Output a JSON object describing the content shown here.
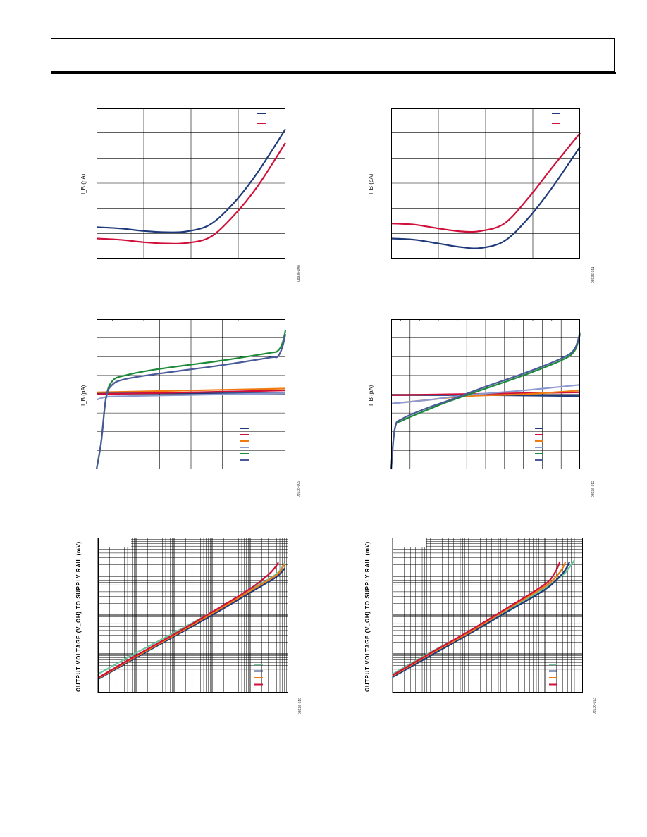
{
  "header": {
    "title": ""
  },
  "colors": {
    "navy": "#1f3a7a",
    "red": "#d0103a",
    "orange": "#f07a10",
    "lavender": "#8c9ad0",
    "green": "#1d8a3a",
    "slate": "#4a5a98",
    "mint": "#6cc49a"
  },
  "figures": [
    {
      "id": "top-left",
      "ylabel": "I_B (pA)",
      "code": "08936-008",
      "chart_data": {
        "type": "line",
        "xlim": [
          0,
          4
        ],
        "ylim": [
          0,
          6
        ],
        "grid": true,
        "legend_position": "top-right",
        "series": [
          {
            "color": "navy",
            "points": [
              [
                0,
                1.25
              ],
              [
                0.5,
                1.2
              ],
              [
                1,
                1.1
              ],
              [
                1.5,
                1.05
              ],
              [
                1.9,
                1.08
              ],
              [
                2.4,
                1.35
              ],
              [
                2.9,
                2.2
              ],
              [
                3.4,
                3.4
              ],
              [
                4,
                5.15
              ]
            ]
          },
          {
            "color": "red",
            "points": [
              [
                0,
                0.8
              ],
              [
                0.5,
                0.75
              ],
              [
                1,
                0.65
              ],
              [
                1.5,
                0.6
              ],
              [
                1.9,
                0.62
              ],
              [
                2.4,
                0.85
              ],
              [
                2.9,
                1.7
              ],
              [
                3.4,
                2.85
              ],
              [
                4,
                4.6
              ]
            ]
          }
        ]
      }
    },
    {
      "id": "top-right",
      "ylabel": "I_B (pA)",
      "code": "08936-011",
      "chart_data": {
        "type": "line",
        "xlim": [
          0,
          4
        ],
        "ylim": [
          0,
          6
        ],
        "grid": true,
        "legend_position": "top-right",
        "series": [
          {
            "color": "navy",
            "points": [
              [
                0,
                0.8
              ],
              [
                0.5,
                0.75
              ],
              [
                1,
                0.6
              ],
              [
                1.5,
                0.45
              ],
              [
                1.9,
                0.42
              ],
              [
                2.4,
                0.7
              ],
              [
                2.9,
                1.6
              ],
              [
                3.4,
                2.8
              ],
              [
                4,
                4.45
              ]
            ]
          },
          {
            "color": "red",
            "points": [
              [
                0,
                1.4
              ],
              [
                0.5,
                1.35
              ],
              [
                1,
                1.2
              ],
              [
                1.5,
                1.08
              ],
              [
                1.9,
                1.1
              ],
              [
                2.4,
                1.4
              ],
              [
                2.9,
                2.4
              ],
              [
                3.4,
                3.6
              ],
              [
                4,
                5.0
              ]
            ]
          }
        ]
      }
    },
    {
      "id": "mid-left",
      "ylabel": "I_B (pA)",
      "code": "08936-009",
      "chart_data": {
        "type": "line",
        "xlim": [
          0,
          6
        ],
        "ylim": [
          0,
          8
        ],
        "grid": true,
        "legend_position": "bottom-right",
        "series": [
          {
            "color": "navy",
            "points": [
              [
                0,
                4.05
              ],
              [
                6,
                4.05
              ]
            ]
          },
          {
            "color": "red",
            "points": [
              [
                0,
                4.0
              ],
              [
                6,
                4.2
              ]
            ]
          },
          {
            "color": "orange",
            "points": [
              [
                0,
                4.1
              ],
              [
                6,
                4.3
              ]
            ]
          },
          {
            "color": "lavender",
            "points": [
              [
                0,
                3.7
              ],
              [
                0.3,
                3.85
              ],
              [
                1,
                3.9
              ],
              [
                6,
                4.05
              ]
            ]
          },
          {
            "color": "green",
            "points": [
              [
                0,
                0
              ],
              [
                0.15,
                1.5
              ],
              [
                0.3,
                3.8
              ],
              [
                0.5,
                4.7
              ],
              [
                0.9,
                5.0
              ],
              [
                2,
                5.35
              ],
              [
                4,
                5.8
              ],
              [
                5.5,
                6.2
              ],
              [
                5.75,
                6.3
              ],
              [
                5.9,
                6.7
              ],
              [
                6,
                7.4
              ]
            ]
          },
          {
            "color": "slate",
            "points": [
              [
                0,
                0
              ],
              [
                0.15,
                1.5
              ],
              [
                0.3,
                3.8
              ],
              [
                0.5,
                4.5
              ],
              [
                0.9,
                4.8
              ],
              [
                2,
                5.1
              ],
              [
                4,
                5.55
              ],
              [
                5.5,
                5.95
              ],
              [
                5.75,
                6.0
              ],
              [
                5.9,
                6.5
              ],
              [
                6,
                7.2
              ]
            ]
          }
        ]
      }
    },
    {
      "id": "mid-right",
      "ylabel": "I_B (pA)",
      "code": "08936-012",
      "chart_data": {
        "type": "line",
        "xlim": [
          0,
          10
        ],
        "ylim": [
          0,
          8
        ],
        "grid": true,
        "legend_position": "bottom-right",
        "series": [
          {
            "color": "navy",
            "points": [
              [
                0,
                3.95
              ],
              [
                5,
                3.95
              ],
              [
                10,
                3.9
              ]
            ]
          },
          {
            "color": "red",
            "points": [
              [
                0,
                3.95
              ],
              [
                10,
                4.1
              ]
            ]
          },
          {
            "color": "orange",
            "points": [
              [
                0,
                3.5
              ],
              [
                2,
                3.7
              ],
              [
                4,
                3.9
              ],
              [
                7,
                4.0
              ],
              [
                10,
                4.2
              ]
            ]
          },
          {
            "color": "lavender",
            "points": [
              [
                0,
                3.5
              ],
              [
                2,
                3.7
              ],
              [
                4,
                3.95
              ],
              [
                7,
                4.2
              ],
              [
                10,
                4.5
              ]
            ]
          },
          {
            "color": "green",
            "points": [
              [
                0,
                0
              ],
              [
                0.2,
                2.2
              ],
              [
                0.6,
                2.6
              ],
              [
                2,
                3.2
              ],
              [
                3,
                3.6
              ],
              [
                5,
                4.3
              ],
              [
                7,
                5.0
              ],
              [
                9,
                5.8
              ],
              [
                9.7,
                6.3
              ],
              [
                10,
                7.2
              ]
            ]
          },
          {
            "color": "slate",
            "points": [
              [
                0,
                0
              ],
              [
                0.2,
                2.2
              ],
              [
                0.6,
                2.7
              ],
              [
                2,
                3.3
              ],
              [
                3,
                3.65
              ],
              [
                5,
                4.4
              ],
              [
                7,
                5.1
              ],
              [
                9,
                5.9
              ],
              [
                9.7,
                6.4
              ],
              [
                10,
                7.3
              ]
            ]
          }
        ]
      }
    },
    {
      "id": "bottom-left",
      "ylabel": "OUTPUT VOLTAGE (V_OH) TO SUPPLY RAIL (mV)",
      "code": "08936-010",
      "chart_data": {
        "type": "line",
        "xscale": "log",
        "yscale": "log",
        "xlim": [
          0.001,
          100
        ],
        "ylim": [
          0.1,
          1000
        ],
        "grid": true,
        "legend_position": "bottom-right",
        "series": [
          {
            "color": "mint",
            "points": [
              [
                0.001,
                0.3
              ],
              [
                0.01,
                1.05
              ],
              [
                0.1,
                3.5
              ],
              [
                1,
                12
              ],
              [
                10,
                45
              ],
              [
                40,
                100
              ],
              [
                60,
                140
              ],
              [
                80,
                220
              ]
            ]
          },
          {
            "color": "navy",
            "points": [
              [
                0.001,
                0.22
              ],
              [
                0.01,
                0.8
              ],
              [
                0.1,
                2.8
              ],
              [
                1,
                10
              ],
              [
                10,
                38
              ],
              [
                40,
                85
              ],
              [
                60,
                115
              ],
              [
                80,
                160
              ]
            ]
          },
          {
            "color": "orange",
            "points": [
              [
                0.001,
                0.23
              ],
              [
                0.01,
                0.85
              ],
              [
                0.1,
                3.0
              ],
              [
                1,
                11
              ],
              [
                10,
                42
              ],
              [
                40,
                95
              ],
              [
                60,
                130
              ],
              [
                80,
                210
              ]
            ]
          },
          {
            "color": "red",
            "points": [
              [
                0.001,
                0.24
              ],
              [
                0.01,
                0.9
              ],
              [
                0.1,
                3.2
              ],
              [
                1,
                12
              ],
              [
                10,
                48
              ],
              [
                30,
                110
              ],
              [
                45,
                170
              ],
              [
                55,
                230
              ]
            ]
          }
        ]
      }
    },
    {
      "id": "bottom-right",
      "ylabel": "OUTPUT VOLTAGE (V_OH) TO SUPPLY RAIL (mV)",
      "code": "08936-013",
      "chart_data": {
        "type": "line",
        "xscale": "log",
        "yscale": "log",
        "xlim": [
          0.001,
          100
        ],
        "ylim": [
          0.1,
          1000
        ],
        "grid": true,
        "legend_position": "bottom-right",
        "series": [
          {
            "color": "mint",
            "points": [
              [
                0.001,
                0.3
              ],
              [
                0.01,
                1.1
              ],
              [
                0.1,
                3.6
              ],
              [
                1,
                13
              ],
              [
                10,
                50
              ],
              [
                30,
                110
              ],
              [
                40,
                150
              ],
              [
                60,
                260
              ]
            ]
          },
          {
            "color": "navy",
            "points": [
              [
                0.001,
                0.25
              ],
              [
                0.01,
                0.9
              ],
              [
                0.1,
                3.2
              ],
              [
                1,
                12
              ],
              [
                10,
                45
              ],
              [
                25,
                100
              ],
              [
                35,
                150
              ],
              [
                45,
                240
              ]
            ]
          },
          {
            "color": "orange",
            "points": [
              [
                0.001,
                0.27
              ],
              [
                0.01,
                1.0
              ],
              [
                0.1,
                3.5
              ],
              [
                1,
                14
              ],
              [
                10,
                55
              ],
              [
                22,
                110
              ],
              [
                30,
                170
              ],
              [
                35,
                240
              ]
            ]
          },
          {
            "color": "red",
            "points": [
              [
                0.001,
                0.28
              ],
              [
                0.01,
                1.05
              ],
              [
                0.1,
                3.8
              ],
              [
                1,
                15
              ],
              [
                10,
                62
              ],
              [
                18,
                120
              ],
              [
                22,
                175
              ],
              [
                25,
                240
              ]
            ]
          }
        ]
      }
    }
  ]
}
